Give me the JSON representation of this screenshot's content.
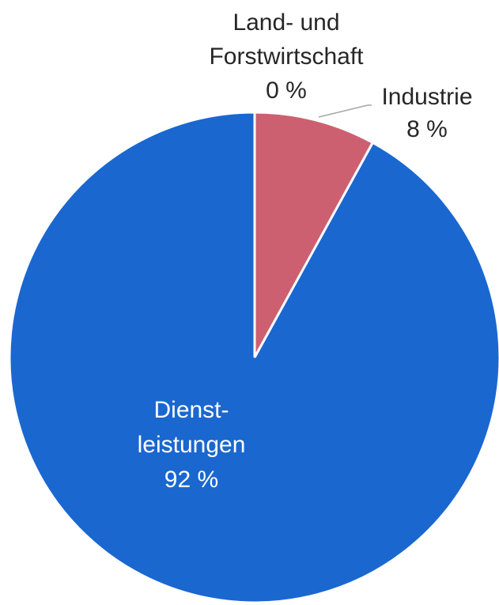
{
  "chart_data": {
    "type": "pie",
    "categories": [
      [
        "Land- und",
        "Forstwirtschaft"
      ],
      [
        "Industrie"
      ],
      [
        "Dienst-",
        "leistungen"
      ]
    ],
    "values": [
      0,
      8,
      92
    ],
    "value_labels": [
      "0 %",
      "8 %",
      "92 %"
    ],
    "colors": [
      "#6a9a3c",
      "#cd6070",
      "#1a67d0"
    ]
  }
}
